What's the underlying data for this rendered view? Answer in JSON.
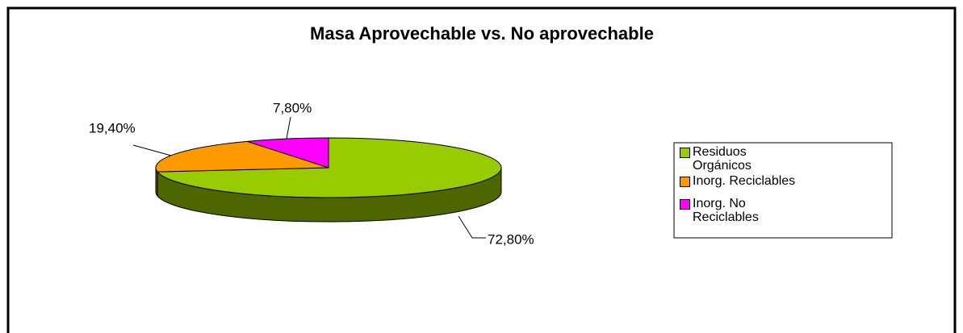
{
  "chart_data": {
    "type": "pie3d",
    "title": "Masa Aprovechable vs. No aprovechable",
    "categories": [
      "Residuos Orgánicos",
      "Inorg. Reciclables",
      "Inorg. No Reciclables"
    ],
    "values": [
      72.8,
      19.4,
      7.8
    ],
    "value_labels": [
      "72,80%",
      "19,40%",
      "7,80%"
    ],
    "colors": [
      "#99cc00",
      "#ff9900",
      "#ff00ff"
    ],
    "legend": "right"
  }
}
